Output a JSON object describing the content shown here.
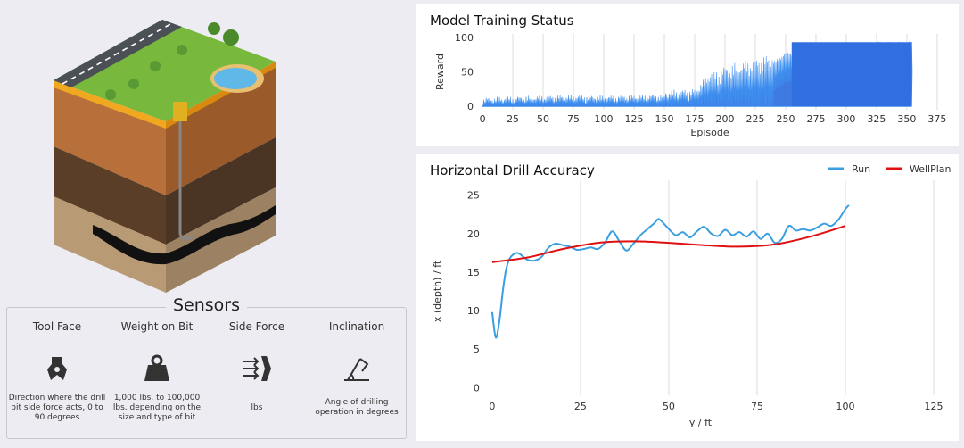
{
  "sensors": {
    "title": "Sensors",
    "items": [
      {
        "name": "Tool Face",
        "desc": "Direction where the drill bit side force acts, 0 to 90 degrees",
        "icon": "drill-bit-icon"
      },
      {
        "name": "Weight on Bit",
        "desc": "1,000 lbs. to 100,000 lbs. depending on the size and type of bit",
        "icon": "weight-icon"
      },
      {
        "name": "Side Force",
        "desc": "lbs",
        "icon": "side-force-icon"
      },
      {
        "name": "Inclination",
        "desc": "Angle of drilling operation in degrees",
        "icon": "inclination-icon"
      }
    ]
  },
  "training": {
    "title": "Model Training Status"
  },
  "accuracy": {
    "title": "Horizontal Drill Accuracy"
  },
  "colors": {
    "run": "#3a9fe0",
    "wellplan": "#e01010",
    "reward": "#2f6fe0"
  },
  "chart_data": [
    {
      "type": "area",
      "title": "Model Training Status",
      "xlabel": "Episode",
      "ylabel": "Reward",
      "xlim": [
        -3,
        378
      ],
      "ylim": [
        -5,
        105
      ],
      "xticks": [
        0,
        25,
        50,
        75,
        100,
        125,
        150,
        175,
        200,
        225,
        250,
        275,
        300,
        325,
        350,
        375
      ],
      "yticks": [
        0,
        50,
        100
      ],
      "grid": "vertical",
      "series": [
        {
          "x": [
            0,
            25,
            50,
            75,
            100,
            125,
            150,
            175,
            190,
            200,
            225,
            240,
            250,
            275,
            300,
            325,
            350,
            354
          ],
          "values": [
            1,
            3,
            4,
            5,
            4,
            5,
            6,
            8,
            35,
            45,
            55,
            62,
            75,
            82,
            88,
            91,
            91,
            91
          ]
        }
      ]
    },
    {
      "type": "line",
      "title": "Horizontal Drill Accuracy",
      "xlabel": "y / ft",
      "ylabel": "x (depth) / ft",
      "xlim": [
        -2,
        125
      ],
      "ylim": [
        -1,
        26
      ],
      "xticks": [
        0,
        25,
        50,
        75,
        100,
        125
      ],
      "yticks": [
        0,
        5,
        10,
        15,
        20,
        25
      ],
      "grid": "vertical",
      "legend": "top-right",
      "series": [
        {
          "name": "Run",
          "x": [
            0,
            1,
            2,
            3,
            4,
            5,
            6,
            7,
            8,
            10,
            12,
            14,
            16,
            18,
            20,
            22,
            24,
            26,
            28,
            30,
            32,
            34,
            36,
            38,
            40,
            42,
            44,
            46,
            47,
            48,
            50,
            52,
            54,
            56,
            58,
            60,
            62,
            64,
            66,
            68,
            70,
            72,
            74,
            76,
            78,
            80,
            82,
            84,
            86,
            88,
            90,
            92,
            94,
            96,
            98,
            100,
            101
          ],
          "values": [
            9.8,
            6.5,
            8.5,
            12.5,
            15.5,
            16.8,
            17.3,
            17.5,
            17.3,
            16.6,
            16.5,
            17.0,
            18.2,
            18.7,
            18.5,
            18.3,
            17.9,
            18.0,
            18.2,
            18.0,
            18.9,
            20.3,
            19.0,
            17.8,
            18.7,
            19.8,
            20.6,
            21.4,
            21.9,
            21.6,
            20.6,
            19.8,
            20.2,
            19.5,
            20.3,
            20.9,
            20.0,
            19.7,
            20.5,
            19.8,
            20.2,
            19.6,
            20.3,
            19.3,
            20.0,
            18.8,
            19.3,
            21.0,
            20.4,
            20.6,
            20.4,
            20.8,
            21.3,
            21.0,
            21.8,
            23.2,
            23.7
          ]
        },
        {
          "name": "WellPlan",
          "x": [
            0,
            10,
            20,
            30,
            40,
            50,
            60,
            70,
            80,
            90,
            100
          ],
          "values": [
            16.3,
            16.9,
            18.0,
            18.8,
            19.0,
            18.8,
            18.5,
            18.3,
            18.6,
            19.6,
            21.0
          ]
        }
      ]
    }
  ]
}
